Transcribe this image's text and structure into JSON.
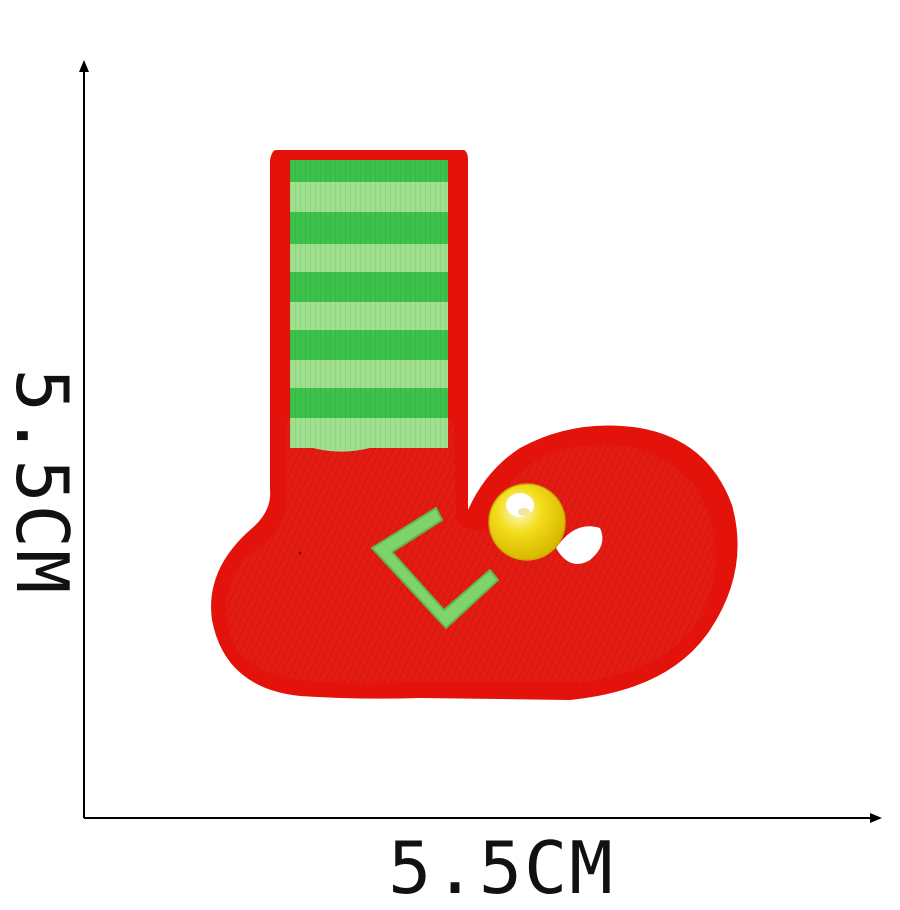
{
  "dimensions": {
    "width_label": "5.5CM",
    "height_label": "5.5CM"
  },
  "patch": {
    "subject": "elf-boot-embroidered-patch",
    "colors": {
      "felt_red": "#e3120b",
      "thread_red": "#e41b13",
      "stripe_dark_green": "#3cc24a",
      "stripe_light_green": "#9fe08e",
      "bell_yellow": "#f3dd1c",
      "bell_highlight": "#ffffff",
      "outline_black": "#000000",
      "background": "#ffffff"
    }
  }
}
